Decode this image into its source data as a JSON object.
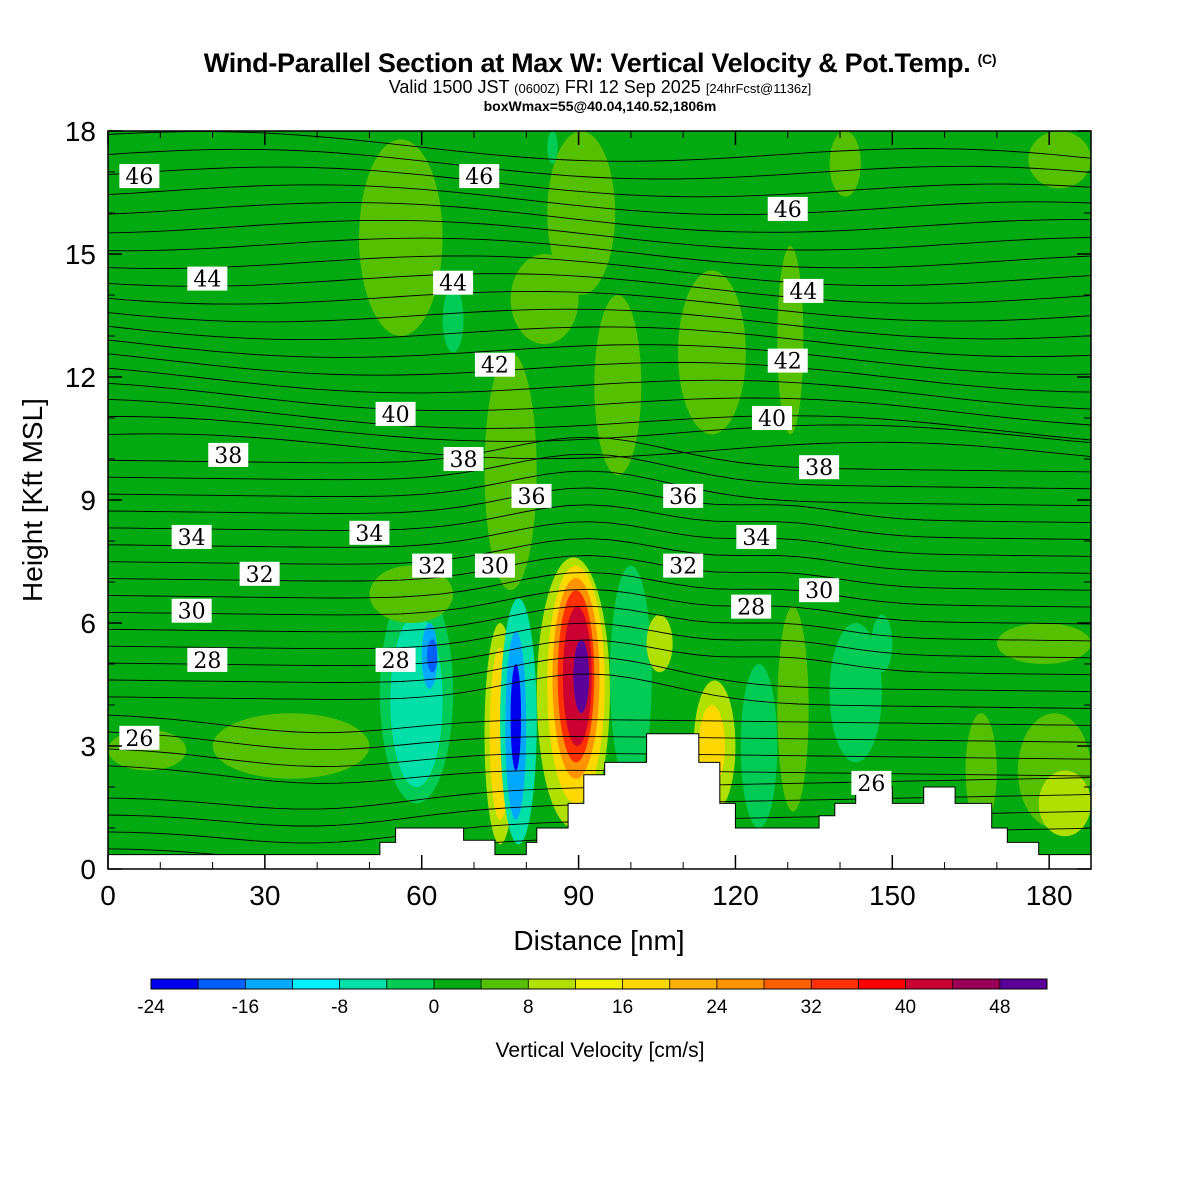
{
  "header": {
    "title": "Wind-Parallel Section at Max W: Vertical Velocity & Pot.Temp.",
    "copyright": "(C)",
    "valid_main": "Valid 1500 JST",
    "valid_utc": "(0600Z)",
    "valid_date": "FRI 12 Sep 2025",
    "valid_fcst": "[24hrFcst@1136z]",
    "box_info": "boxWmax=55@40.04,140.52,1806m"
  },
  "chart_data": {
    "type": "heatmap",
    "title": "Wind-Parallel Section at Max W: Vertical Velocity & Pot.Temp.",
    "xlabel": "Distance [nm]",
    "ylabel": "Height [Kft MSL]",
    "xlim": [
      0,
      188
    ],
    "ylim": [
      0,
      18
    ],
    "x_ticks": [
      0,
      30,
      60,
      90,
      120,
      150,
      180
    ],
    "y_ticks": [
      0,
      3,
      6,
      9,
      12,
      15,
      18
    ],
    "background_w": 0,
    "colorbar": {
      "title": "Vertical Velocity [cm/s]",
      "levels": [
        -24,
        -20,
        -16,
        -12,
        -8,
        -4,
        0,
        4,
        8,
        12,
        16,
        20,
        24,
        28,
        32,
        36,
        40,
        44,
        48,
        52
      ],
      "tick_labels": [
        "-24",
        "-16",
        "-8",
        "0",
        "8",
        "16",
        "24",
        "32",
        "40",
        "48"
      ],
      "colors": [
        "#0000ee",
        "#0060ff",
        "#00a8ff",
        "#00f0ff",
        "#00e0a8",
        "#00cc55",
        "#00aa10",
        "#55c000",
        "#b0e000",
        "#f0f000",
        "#ffd800",
        "#ffb000",
        "#ff9400",
        "#ff6000",
        "#ff3000",
        "#ff0000",
        "#cc0030",
        "#990055",
        "#5a0099"
      ]
    },
    "vertical_velocity_cells": [
      {
        "x": [
          52,
          66
        ],
        "y": [
          1.6,
          7.0
        ],
        "w": -4
      },
      {
        "x": [
          54,
          64
        ],
        "y": [
          2.0,
          6.2
        ],
        "w": -8
      },
      {
        "x": [
          60,
          63
        ],
        "y": [
          4.4,
          6.0
        ],
        "w": -16
      },
      {
        "x": [
          61,
          63
        ],
        "y": [
          4.8,
          5.6
        ],
        "w": -20
      },
      {
        "x": [
          72,
          78
        ],
        "y": [
          0.6,
          6.0
        ],
        "w": 8
      },
      {
        "x": [
          73,
          77
        ],
        "y": [
          1.2,
          5.4
        ],
        "w": 16
      },
      {
        "x": [
          75,
          82
        ],
        "y": [
          0.6,
          6.6
        ],
        "w": -8
      },
      {
        "x": [
          76,
          80
        ],
        "y": [
          1.2,
          5.8
        ],
        "w": -16
      },
      {
        "x": [
          77,
          79
        ],
        "y": [
          2.4,
          5.0
        ],
        "w": -24
      },
      {
        "x": [
          82,
          96
        ],
        "y": [
          1.0,
          7.6
        ],
        "w": 8
      },
      {
        "x": [
          84,
          95
        ],
        "y": [
          1.6,
          7.4
        ],
        "w": 16
      },
      {
        "x": [
          85,
          94
        ],
        "y": [
          2.2,
          7.1
        ],
        "w": 24
      },
      {
        "x": [
          86,
          93
        ],
        "y": [
          2.6,
          6.8
        ],
        "w": 32
      },
      {
        "x": [
          87,
          92.5
        ],
        "y": [
          3.0,
          6.4
        ],
        "w": 40
      },
      {
        "x": [
          89,
          92
        ],
        "y": [
          3.8,
          5.6
        ],
        "w": 48
      },
      {
        "x": [
          96,
          104
        ],
        "y": [
          2.0,
          7.4
        ],
        "w": -4
      },
      {
        "x": [
          103,
          108
        ],
        "y": [
          4.8,
          6.2
        ],
        "w": 8
      },
      {
        "x": [
          112,
          120
        ],
        "y": [
          1.4,
          4.6
        ],
        "w": 8
      },
      {
        "x": [
          113,
          118
        ],
        "y": [
          2.0,
          4.0
        ],
        "w": 16
      },
      {
        "x": [
          121,
          128
        ],
        "y": [
          1.0,
          5.0
        ],
        "w": -4
      },
      {
        "x": [
          128,
          134
        ],
        "y": [
          1.4,
          6.4
        ],
        "w": 4
      },
      {
        "x": [
          138,
          148
        ],
        "y": [
          2.6,
          6.0
        ],
        "w": -4
      },
      {
        "x": [
          164,
          170
        ],
        "y": [
          1.0,
          3.8
        ],
        "w": 4
      },
      {
        "x": [
          174,
          188
        ],
        "y": [
          1.0,
          3.8
        ],
        "w": 4
      },
      {
        "x": [
          178,
          188
        ],
        "y": [
          0.8,
          2.4
        ],
        "w": 8
      },
      {
        "x": [
          20,
          50
        ],
        "y": [
          2.2,
          3.8
        ],
        "w": 4
      },
      {
        "x": [
          0,
          15
        ],
        "y": [
          2.4,
          3.4
        ],
        "w": 4
      },
      {
        "x": [
          50,
          66
        ],
        "y": [
          6.0,
          7.4
        ],
        "w": 4
      },
      {
        "x": [
          48,
          64
        ],
        "y": [
          13.0,
          17.8
        ],
        "w": 4
      },
      {
        "x": [
          72,
          82
        ],
        "y": [
          6.8,
          12.6
        ],
        "w": 4
      },
      {
        "x": [
          77,
          90
        ],
        "y": [
          12.8,
          15.0
        ],
        "w": 4
      },
      {
        "x": [
          84,
          97
        ],
        "y": [
          14.0,
          18.0
        ],
        "w": 4
      },
      {
        "x": [
          93,
          102
        ],
        "y": [
          9.6,
          14.0
        ],
        "w": 4
      },
      {
        "x": [
          109,
          122
        ],
        "y": [
          10.6,
          14.6
        ],
        "w": 4
      },
      {
        "x": [
          128,
          133
        ],
        "y": [
          10.6,
          15.2
        ],
        "w": 4
      },
      {
        "x": [
          138,
          144
        ],
        "y": [
          16.4,
          18.0
        ],
        "w": 4
      },
      {
        "x": [
          176,
          188
        ],
        "y": [
          16.6,
          18.0
        ],
        "w": 4
      },
      {
        "x": [
          170,
          188
        ],
        "y": [
          5.0,
          6.0
        ],
        "w": 4
      },
      {
        "x": [
          64,
          68
        ],
        "y": [
          12.6,
          14.2
        ],
        "w": -4
      },
      {
        "x": [
          84,
          86
        ],
        "y": [
          17.2,
          18.0
        ],
        "w": -4
      },
      {
        "x": [
          146,
          150
        ],
        "y": [
          4.8,
          6.2
        ],
        "w": -4
      }
    ],
    "terrain": [
      [
        0,
        0.35
      ],
      [
        52,
        0.35
      ],
      [
        52,
        0.65
      ],
      [
        55,
        0.65
      ],
      [
        55,
        1.0
      ],
      [
        68,
        1.0
      ],
      [
        68,
        0.7
      ],
      [
        74,
        0.7
      ],
      [
        74,
        0.35
      ],
      [
        80,
        0.35
      ],
      [
        80,
        0.65
      ],
      [
        82,
        0.65
      ],
      [
        82,
        1.0
      ],
      [
        88,
        1.0
      ],
      [
        88,
        1.6
      ],
      [
        91,
        1.6
      ],
      [
        91,
        2.3
      ],
      [
        95,
        2.3
      ],
      [
        95,
        2.6
      ],
      [
        103,
        2.6
      ],
      [
        103,
        3.3
      ],
      [
        113,
        3.3
      ],
      [
        113,
        2.6
      ],
      [
        117,
        2.6
      ],
      [
        117,
        1.6
      ],
      [
        120,
        1.6
      ],
      [
        120,
        1.0
      ],
      [
        136,
        1.0
      ],
      [
        136,
        1.3
      ],
      [
        139,
        1.3
      ],
      [
        139,
        1.6
      ],
      [
        143,
        1.6
      ],
      [
        143,
        2.0
      ],
      [
        150,
        2.0
      ],
      [
        150,
        1.6
      ],
      [
        156,
        1.6
      ],
      [
        156,
        2.0
      ],
      [
        162,
        2.0
      ],
      [
        162,
        1.6
      ],
      [
        169,
        1.6
      ],
      [
        169,
        1.0
      ],
      [
        172,
        1.0
      ],
      [
        172,
        0.65
      ],
      [
        178,
        0.65
      ],
      [
        178,
        0.35
      ],
      [
        188,
        0.35
      ]
    ],
    "theta_labels": [
      {
        "x": 6,
        "y": 16.9,
        "text": "46"
      },
      {
        "x": 71,
        "y": 16.9,
        "text": "46"
      },
      {
        "x": 130,
        "y": 16.1,
        "text": "46"
      },
      {
        "x": 19,
        "y": 14.4,
        "text": "44"
      },
      {
        "x": 66,
        "y": 14.3,
        "text": "44"
      },
      {
        "x": 133,
        "y": 14.1,
        "text": "44"
      },
      {
        "x": 74,
        "y": 12.3,
        "text": "42"
      },
      {
        "x": 130,
        "y": 12.4,
        "text": "42"
      },
      {
        "x": 55,
        "y": 11.1,
        "text": "40"
      },
      {
        "x": 127,
        "y": 11.0,
        "text": "40"
      },
      {
        "x": 23,
        "y": 10.1,
        "text": "38"
      },
      {
        "x": 68,
        "y": 10.0,
        "text": "38"
      },
      {
        "x": 136,
        "y": 9.8,
        "text": "38"
      },
      {
        "x": 81,
        "y": 9.1,
        "text": "36"
      },
      {
        "x": 110,
        "y": 9.1,
        "text": "36"
      },
      {
        "x": 16,
        "y": 8.1,
        "text": "34"
      },
      {
        "x": 50,
        "y": 8.2,
        "text": "34"
      },
      {
        "x": 124,
        "y": 8.1,
        "text": "34"
      },
      {
        "x": 29,
        "y": 7.2,
        "text": "32"
      },
      {
        "x": 62,
        "y": 7.4,
        "text": "32"
      },
      {
        "x": 110,
        "y": 7.4,
        "text": "32"
      },
      {
        "x": 16,
        "y": 6.3,
        "text": "30"
      },
      {
        "x": 74,
        "y": 7.4,
        "text": "30"
      },
      {
        "x": 136,
        "y": 6.8,
        "text": "30"
      },
      {
        "x": 19,
        "y": 5.1,
        "text": "28"
      },
      {
        "x": 55,
        "y": 5.1,
        "text": "28"
      },
      {
        "x": 123,
        "y": 6.4,
        "text": "28"
      },
      {
        "x": 6,
        "y": 3.2,
        "text": "26"
      },
      {
        "x": 146,
        "y": 2.1,
        "text": "26"
      }
    ]
  }
}
